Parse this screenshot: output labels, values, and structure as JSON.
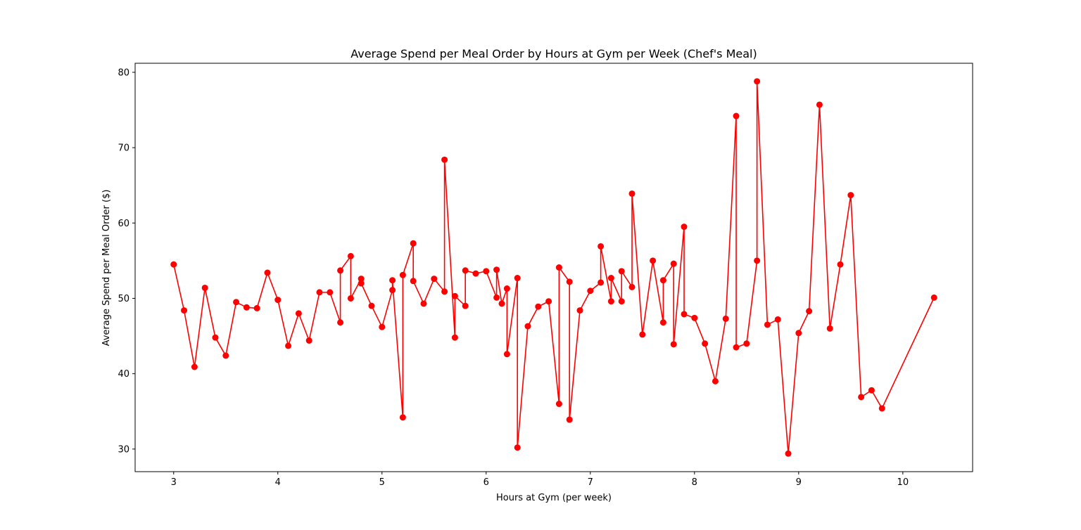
{
  "chart_data": {
    "type": "line",
    "title": "Average Spend per Meal Order by Hours at Gym per Week (Chef's Meal)",
    "xlabel": "Hours at Gym (per week)",
    "ylabel": "Average Spend per Meal Order ($)",
    "xlim": [
      2.63,
      10.67
    ],
    "ylim": [
      27.0,
      81.2
    ],
    "xticks": [
      3,
      4,
      5,
      6,
      7,
      8,
      9,
      10
    ],
    "yticks": [
      30,
      40,
      50,
      60,
      70,
      80
    ],
    "grid": false,
    "line_color": "#ff0000",
    "marker": "circle",
    "series": [
      {
        "points": [
          [
            3.0,
            54.5
          ],
          [
            3.1,
            48.4
          ],
          [
            3.2,
            40.9
          ],
          [
            3.3,
            51.4
          ],
          [
            3.4,
            44.8
          ],
          [
            3.5,
            42.4
          ],
          [
            3.6,
            49.5
          ],
          [
            3.7,
            48.8
          ],
          [
            3.8,
            48.7
          ],
          [
            3.9,
            53.4
          ],
          [
            4.0,
            49.8
          ],
          [
            4.1,
            43.7
          ],
          [
            4.2,
            48.0
          ],
          [
            4.3,
            44.4
          ],
          [
            4.4,
            50.8
          ],
          [
            4.5,
            50.8
          ],
          [
            4.6,
            46.8
          ],
          [
            4.6,
            53.7
          ],
          [
            4.7,
            55.6
          ],
          [
            4.7,
            50.0
          ],
          [
            4.8,
            52.6
          ],
          [
            4.8,
            52.0
          ],
          [
            4.9,
            49.0
          ],
          [
            5.0,
            46.2
          ],
          [
            5.1,
            51.1
          ],
          [
            5.1,
            52.4
          ],
          [
            5.2,
            34.2
          ],
          [
            5.2,
            53.1
          ],
          [
            5.3,
            57.3
          ],
          [
            5.3,
            52.3
          ],
          [
            5.4,
            49.3
          ],
          [
            5.5,
            52.6
          ],
          [
            5.6,
            50.9
          ],
          [
            5.6,
            68.4
          ],
          [
            5.7,
            44.8
          ],
          [
            5.7,
            50.3
          ],
          [
            5.8,
            49.0
          ],
          [
            5.8,
            53.7
          ],
          [
            5.9,
            53.3
          ],
          [
            6.0,
            53.6
          ],
          [
            6.1,
            50.1
          ],
          [
            6.1,
            53.8
          ],
          [
            6.15,
            49.3
          ],
          [
            6.2,
            51.3
          ],
          [
            6.2,
            42.6
          ],
          [
            6.3,
            52.7
          ],
          [
            6.3,
            30.2
          ],
          [
            6.4,
            46.3
          ],
          [
            6.5,
            48.9
          ],
          [
            6.6,
            49.6
          ],
          [
            6.7,
            36.0
          ],
          [
            6.7,
            54.1
          ],
          [
            6.8,
            52.2
          ],
          [
            6.8,
            33.9
          ],
          [
            6.9,
            48.4
          ],
          [
            7.0,
            51.0
          ],
          [
            7.1,
            52.1
          ],
          [
            7.1,
            56.9
          ],
          [
            7.2,
            49.6
          ],
          [
            7.2,
            52.7
          ],
          [
            7.3,
            49.6
          ],
          [
            7.3,
            53.6
          ],
          [
            7.4,
            51.5
          ],
          [
            7.4,
            63.9
          ],
          [
            7.5,
            45.2
          ],
          [
            7.6,
            55.0
          ],
          [
            7.7,
            46.8
          ],
          [
            7.7,
            52.4
          ],
          [
            7.8,
            54.6
          ],
          [
            7.8,
            43.9
          ],
          [
            7.9,
            59.5
          ],
          [
            7.9,
            47.9
          ],
          [
            8.0,
            47.4
          ],
          [
            8.1,
            44.0
          ],
          [
            8.2,
            39.0
          ],
          [
            8.3,
            47.3
          ],
          [
            8.4,
            74.2
          ],
          [
            8.4,
            43.5
          ],
          [
            8.5,
            44.0
          ],
          [
            8.6,
            55.0
          ],
          [
            8.6,
            78.8
          ],
          [
            8.7,
            46.5
          ],
          [
            8.8,
            47.2
          ],
          [
            8.9,
            29.4
          ],
          [
            9.0,
            45.4
          ],
          [
            9.1,
            48.3
          ],
          [
            9.2,
            75.7
          ],
          [
            9.3,
            46.0
          ],
          [
            9.4,
            54.5
          ],
          [
            9.5,
            63.7
          ],
          [
            9.6,
            36.9
          ],
          [
            9.7,
            37.8
          ],
          [
            9.8,
            35.4
          ],
          [
            10.3,
            50.1
          ]
        ]
      }
    ]
  }
}
